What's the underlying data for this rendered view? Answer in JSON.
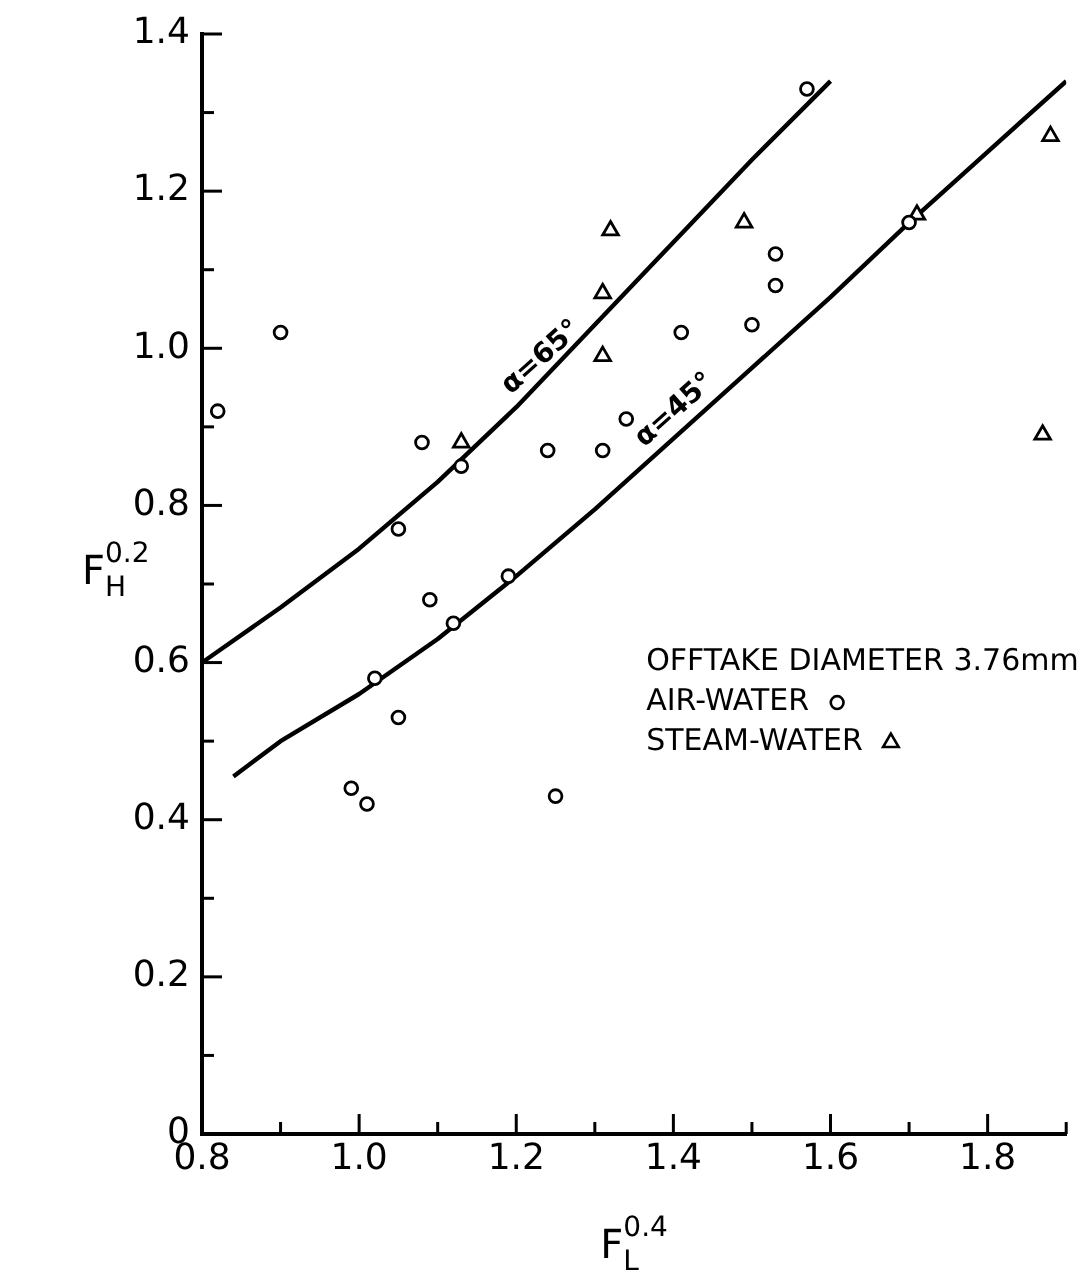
{
  "chart_data": {
    "type": "scatter",
    "xlabel": "F$_{L}$$^{0.4}$",
    "ylabel": "F$_{H}$$^{0.2}$",
    "legend_title": "OFFTAKE DIAMETER 3.76mm",
    "legend": "right",
    "xlim": [
      0.8,
      1.9
    ],
    "ylim": [
      0,
      1.4
    ],
    "xticks": [
      0.8,
      {
        "value": 0.9,
        "label": null
      },
      {
        "value": 1.0,
        "label": "1.0"
      },
      {
        "value": 1.1,
        "label": null
      },
      1.2,
      {
        "value": 1.3,
        "label": null
      },
      1.4,
      {
        "value": 1.5,
        "label": null
      },
      1.6,
      {
        "value": 1.7,
        "label": null
      },
      1.8,
      {
        "value": 1.9,
        "label": null
      }
    ],
    "yticks": [
      0,
      {
        "value": 0.1,
        "label": null
      },
      0.2,
      {
        "value": 0.3,
        "label": null
      },
      0.4,
      {
        "value": 0.5,
        "label": null
      },
      0.6,
      {
        "value": 0.7,
        "label": null
      },
      0.8,
      {
        "value": 0.9,
        "label": null
      },
      {
        "value": 1.0,
        "label": "1.0"
      },
      {
        "value": 1.1,
        "label": null
      },
      1.2,
      {
        "value": 1.3,
        "label": null
      },
      1.4
    ],
    "grid": false,
    "series": [
      {
        "name": "AIR-WATER",
        "color": "#000000",
        "marker": "circle",
        "x": [
          0.82,
          0.9,
          1.08,
          1.13,
          1.24,
          1.05,
          1.09,
          1.19,
          1.12,
          1.02,
          1.05,
          0.99,
          1.01,
          1.25,
          1.57,
          1.53,
          1.53,
          1.5,
          1.41,
          1.34,
          1.31,
          1.7
        ],
        "values": [
          0.92,
          1.02,
          0.88,
          0.85,
          0.87,
          0.77,
          0.68,
          0.71,
          0.65,
          0.58,
          0.53,
          0.44,
          0.42,
          0.43,
          1.33,
          1.12,
          1.08,
          1.03,
          1.02,
          0.91,
          0.87,
          1.16
        ]
      },
      {
        "name": "STEAM-WATER",
        "color": "#000000",
        "marker": "triangle",
        "x": [
          1.32,
          1.31,
          1.31,
          1.49,
          1.71,
          1.88,
          1.87,
          1.13
        ],
        "values": [
          1.15,
          1.07,
          0.99,
          1.16,
          1.17,
          1.27,
          0.89,
          0.88
        ]
      },
      {
        "type": "line",
        "color": "#000000",
        "marker": "none",
        "line_style": "solid",
        "x": [
          0.8,
          0.9,
          1.0,
          1.1,
          1.2,
          1.3,
          1.4,
          1.5,
          1.6
        ],
        "values": [
          0.6,
          0.67,
          0.745,
          0.83,
          0.925,
          1.03,
          1.135,
          1.24,
          1.34
        ]
      },
      {
        "type": "line",
        "color": "#000000",
        "marker": "none",
        "line_style": "solid",
        "x": [
          0.84,
          0.9,
          1.0,
          1.1,
          1.2,
          1.3,
          1.4,
          1.5,
          1.6,
          1.7,
          1.8,
          1.9
        ],
        "values": [
          0.455,
          0.5,
          0.56,
          0.63,
          0.71,
          0.795,
          0.885,
          0.975,
          1.065,
          1.16,
          1.25,
          1.34
        ]
      }
    ],
    "annotations": [
      {
        "text": "α=65°",
        "x": 1.2,
        "y": 0.925
      },
      {
        "text": "α=45°",
        "x": 1.37,
        "y": 0.858
      }
    ]
  }
}
